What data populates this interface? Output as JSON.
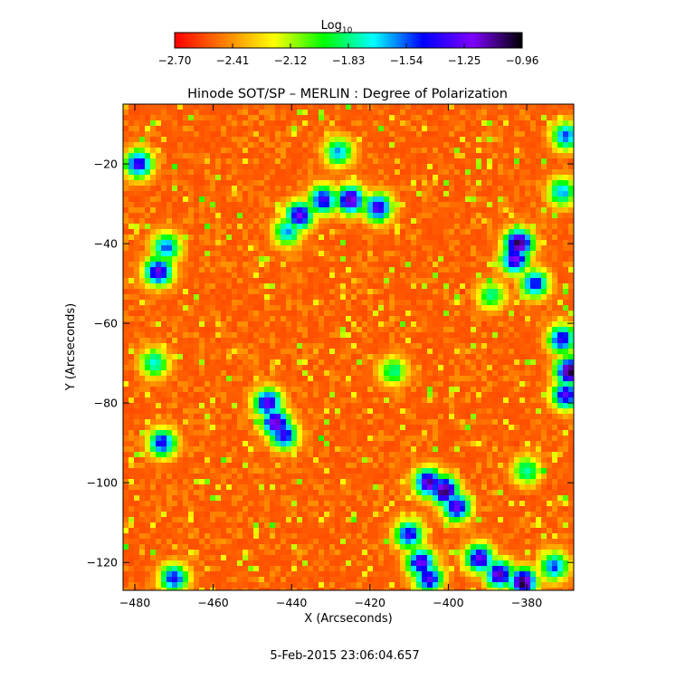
{
  "chart_data": {
    "type": "heatmap",
    "title": "Hinode SOT/SP – MERLIN : Degree of Polarization",
    "xlabel": "X (Arcseconds)",
    "ylabel": "Y (Arcseconds)",
    "xlim": [
      -483,
      -368
    ],
    "ylim": [
      -127,
      -5
    ],
    "x_ticks": [
      -480,
      -460,
      -440,
      -420,
      -400,
      -380
    ],
    "x_tick_labels": [
      "−480",
      "−460",
      "−440",
      "−420",
      "−400",
      "−380"
    ],
    "y_ticks": [
      -20,
      -40,
      -60,
      -80,
      -100,
      -120
    ],
    "y_tick_labels": [
      "−20",
      "−40",
      "−60",
      "−80",
      "−100",
      "−120"
    ],
    "colorbar": {
      "label": "Log",
      "label_subscript": "10",
      "range": [
        -2.7,
        -0.96
      ],
      "ticks": [
        -2.7,
        -2.41,
        -2.12,
        -1.83,
        -1.54,
        -1.25,
        -0.96
      ],
      "tick_labels": [
        "−2.70",
        "−2.41",
        "−2.12",
        "−1.83",
        "−1.54",
        "−1.25",
        "−0.96"
      ],
      "colormap": [
        "#ff0000",
        "#ff7f00",
        "#ffff00",
        "#00ff00",
        "#00ffff",
        "#0000ff",
        "#7f00ff",
        "#000000"
      ]
    },
    "background_level": -2.55,
    "features": [
      {
        "x": -479,
        "y": -20,
        "level": -1.3
      },
      {
        "x": -472,
        "y": -41,
        "level": -1.5
      },
      {
        "x": -474,
        "y": -47,
        "level": -1.2
      },
      {
        "x": -475,
        "y": -70,
        "level": -1.7
      },
      {
        "x": -473,
        "y": -90,
        "level": -1.4
      },
      {
        "x": -470,
        "y": -124,
        "level": -1.4
      },
      {
        "x": -438,
        "y": -33,
        "level": -1.2
      },
      {
        "x": -441,
        "y": -37,
        "level": -1.6
      },
      {
        "x": -425,
        "y": -29,
        "level": -1.1
      },
      {
        "x": -432,
        "y": -29,
        "level": -1.3
      },
      {
        "x": -418,
        "y": -31,
        "level": -1.25
      },
      {
        "x": -428,
        "y": -17,
        "level": -1.6
      },
      {
        "x": -446,
        "y": -80,
        "level": -1.2
      },
      {
        "x": -444,
        "y": -85,
        "level": -1.1
      },
      {
        "x": -442,
        "y": -88,
        "level": -1.3
      },
      {
        "x": -414,
        "y": -72,
        "level": -1.8
      },
      {
        "x": -405,
        "y": -100,
        "level": -1.1
      },
      {
        "x": -401,
        "y": -102,
        "level": -1.0
      },
      {
        "x": -398,
        "y": -106,
        "level": -1.2
      },
      {
        "x": -410,
        "y": -113,
        "level": -1.35
      },
      {
        "x": -407,
        "y": -120,
        "level": -1.2
      },
      {
        "x": -405,
        "y": -124,
        "level": -1.25
      },
      {
        "x": -392,
        "y": -119,
        "level": -1.2
      },
      {
        "x": -387,
        "y": -123,
        "level": -1.15
      },
      {
        "x": -381,
        "y": -125,
        "level": -1.0
      },
      {
        "x": -373,
        "y": -121,
        "level": -1.5
      },
      {
        "x": -382,
        "y": -40,
        "level": -1.0
      },
      {
        "x": -383,
        "y": -44,
        "level": -1.2
      },
      {
        "x": -378,
        "y": -50,
        "level": -1.4
      },
      {
        "x": -371,
        "y": -64,
        "level": -1.35
      },
      {
        "x": -369,
        "y": -72,
        "level": -1.0
      },
      {
        "x": -370,
        "y": -78,
        "level": -1.25
      },
      {
        "x": -370,
        "y": -13,
        "level": -1.5
      },
      {
        "x": -371,
        "y": -27,
        "level": -1.6
      },
      {
        "x": -389,
        "y": -53,
        "level": -1.8
      },
      {
        "x": -380,
        "y": -97,
        "level": -1.75
      }
    ],
    "grid": false,
    "legend": "colorbar-top"
  },
  "timestamp": "5-Feb-2015 23:06:04.657"
}
